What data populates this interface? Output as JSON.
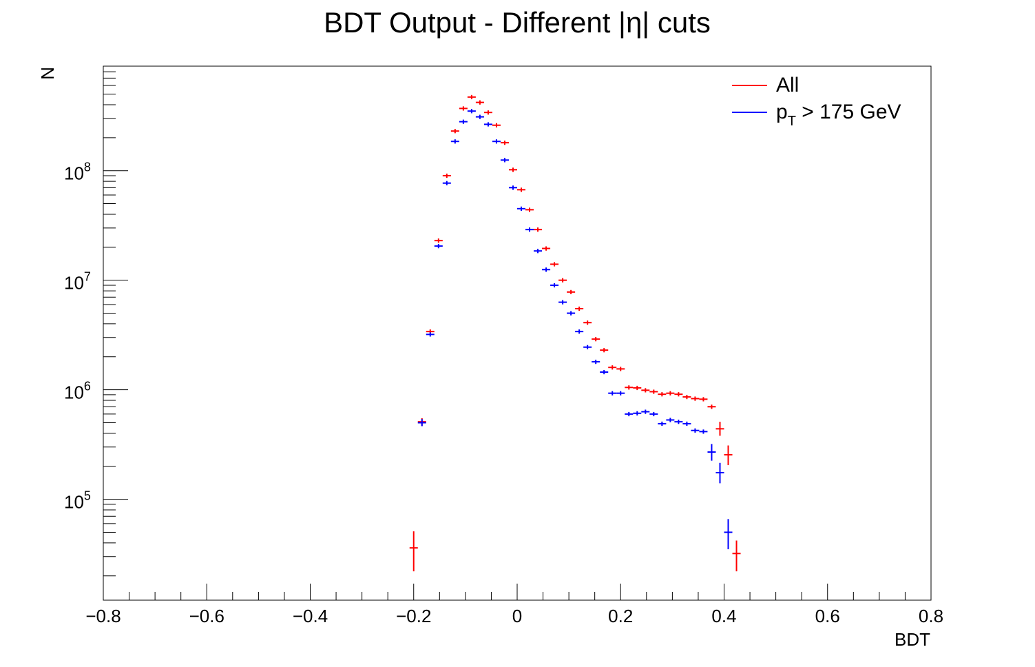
{
  "chart_data": {
    "type": "scatter",
    "title": "BDT Output - Different |η| cuts",
    "xlabel": "BDT",
    "ylabel": "N",
    "xlim": [
      -0.8,
      0.8
    ],
    "ylim": [
      12000,
      900000000
    ],
    "log_y": true,
    "grid": false,
    "legend_position": "top-right",
    "x_ticks": [
      {
        "value": -0.8,
        "label": "−0.8"
      },
      {
        "value": -0.6,
        "label": "−0.6"
      },
      {
        "value": -0.4,
        "label": "−0.4"
      },
      {
        "value": -0.2,
        "label": "−0.2"
      },
      {
        "value": 0,
        "label": "0"
      },
      {
        "value": 0.2,
        "label": "0.2"
      },
      {
        "value": 0.4,
        "label": "0.4"
      },
      {
        "value": 0.6,
        "label": "0.6"
      },
      {
        "value": 0.8,
        "label": "0.8"
      }
    ],
    "y_ticks": [
      {
        "value": 100000,
        "base": "10",
        "exp": "5"
      },
      {
        "value": 1000000,
        "base": "10",
        "exp": "6"
      },
      {
        "value": 10000000,
        "base": "10",
        "exp": "7"
      },
      {
        "value": 100000000,
        "base": "10",
        "exp": "8"
      }
    ],
    "bin_half_width": 0.008,
    "series": [
      {
        "name": "All",
        "legend_label": "All",
        "color": "#ff0000",
        "points": [
          {
            "x": -0.2,
            "y": 36000,
            "lo": 22000,
            "hi": 51000
          },
          {
            "x": -0.184,
            "y": 510000,
            "lo": 470000,
            "hi": 550000
          },
          {
            "x": -0.168,
            "y": 3400000
          },
          {
            "x": -0.152,
            "y": 23000000
          },
          {
            "x": -0.136,
            "y": 90000000
          },
          {
            "x": -0.12,
            "y": 230000000
          },
          {
            "x": -0.104,
            "y": 370000000
          },
          {
            "x": -0.088,
            "y": 470000000
          },
          {
            "x": -0.072,
            "y": 420000000
          },
          {
            "x": -0.056,
            "y": 340000000
          },
          {
            "x": -0.04,
            "y": 260000000
          },
          {
            "x": -0.024,
            "y": 180000000
          },
          {
            "x": -0.008,
            "y": 102000000
          },
          {
            "x": 0.008,
            "y": 67000000
          },
          {
            "x": 0.024,
            "y": 44000000
          },
          {
            "x": 0.04,
            "y": 29000000
          },
          {
            "x": 0.056,
            "y": 19500000
          },
          {
            "x": 0.072,
            "y": 14000000
          },
          {
            "x": 0.088,
            "y": 10000000
          },
          {
            "x": 0.104,
            "y": 7800000
          },
          {
            "x": 0.12,
            "y": 5500000
          },
          {
            "x": 0.136,
            "y": 4100000
          },
          {
            "x": 0.152,
            "y": 2900000
          },
          {
            "x": 0.168,
            "y": 2300000
          },
          {
            "x": 0.184,
            "y": 1600000
          },
          {
            "x": 0.2,
            "y": 1550000
          },
          {
            "x": 0.216,
            "y": 1050000
          },
          {
            "x": 0.232,
            "y": 1040000
          },
          {
            "x": 0.248,
            "y": 990000
          },
          {
            "x": 0.264,
            "y": 960000
          },
          {
            "x": 0.28,
            "y": 910000
          },
          {
            "x": 0.296,
            "y": 930000
          },
          {
            "x": 0.312,
            "y": 910000
          },
          {
            "x": 0.328,
            "y": 860000
          },
          {
            "x": 0.344,
            "y": 830000
          },
          {
            "x": 0.36,
            "y": 820000
          },
          {
            "x": 0.376,
            "y": 700000
          },
          {
            "x": 0.392,
            "y": 440000,
            "lo": 380000,
            "hi": 510000
          },
          {
            "x": 0.408,
            "y": 255000,
            "lo": 205000,
            "hi": 310000
          },
          {
            "x": 0.424,
            "y": 32000,
            "lo": 22000,
            "hi": 42000
          }
        ]
      },
      {
        "name": "p_T > 175 GeV",
        "legend_label": {
          "p": "p",
          "sub": "T",
          "rest": " > 175 GeV"
        },
        "color": "#0000ff",
        "points": [
          {
            "x": -0.184,
            "y": 500000,
            "lo": 465000,
            "hi": 540000
          },
          {
            "x": -0.168,
            "y": 3200000
          },
          {
            "x": -0.152,
            "y": 20500000
          },
          {
            "x": -0.136,
            "y": 77000000
          },
          {
            "x": -0.12,
            "y": 185000000
          },
          {
            "x": -0.104,
            "y": 280000000
          },
          {
            "x": -0.088,
            "y": 350000000
          },
          {
            "x": -0.072,
            "y": 310000000
          },
          {
            "x": -0.056,
            "y": 265000000
          },
          {
            "x": -0.04,
            "y": 185000000
          },
          {
            "x": -0.024,
            "y": 125000000
          },
          {
            "x": -0.008,
            "y": 70000000
          },
          {
            "x": 0.008,
            "y": 45000000
          },
          {
            "x": 0.024,
            "y": 29000000
          },
          {
            "x": 0.04,
            "y": 18500000
          },
          {
            "x": 0.056,
            "y": 12500000
          },
          {
            "x": 0.072,
            "y": 9000000
          },
          {
            "x": 0.088,
            "y": 6300000
          },
          {
            "x": 0.104,
            "y": 5000000
          },
          {
            "x": 0.12,
            "y": 3400000
          },
          {
            "x": 0.136,
            "y": 2450000
          },
          {
            "x": 0.152,
            "y": 1800000
          },
          {
            "x": 0.168,
            "y": 1450000
          },
          {
            "x": 0.184,
            "y": 930000
          },
          {
            "x": 0.2,
            "y": 930000
          },
          {
            "x": 0.216,
            "y": 600000
          },
          {
            "x": 0.232,
            "y": 610000
          },
          {
            "x": 0.248,
            "y": 630000
          },
          {
            "x": 0.264,
            "y": 600000
          },
          {
            "x": 0.28,
            "y": 490000
          },
          {
            "x": 0.296,
            "y": 530000
          },
          {
            "x": 0.312,
            "y": 510000
          },
          {
            "x": 0.328,
            "y": 490000
          },
          {
            "x": 0.344,
            "y": 425000
          },
          {
            "x": 0.36,
            "y": 415000
          },
          {
            "x": 0.376,
            "y": 270000,
            "lo": 225000,
            "hi": 320000
          },
          {
            "x": 0.392,
            "y": 175000,
            "lo": 140000,
            "hi": 215000
          },
          {
            "x": 0.408,
            "y": 50000,
            "lo": 35000,
            "hi": 66000
          }
        ]
      }
    ]
  }
}
